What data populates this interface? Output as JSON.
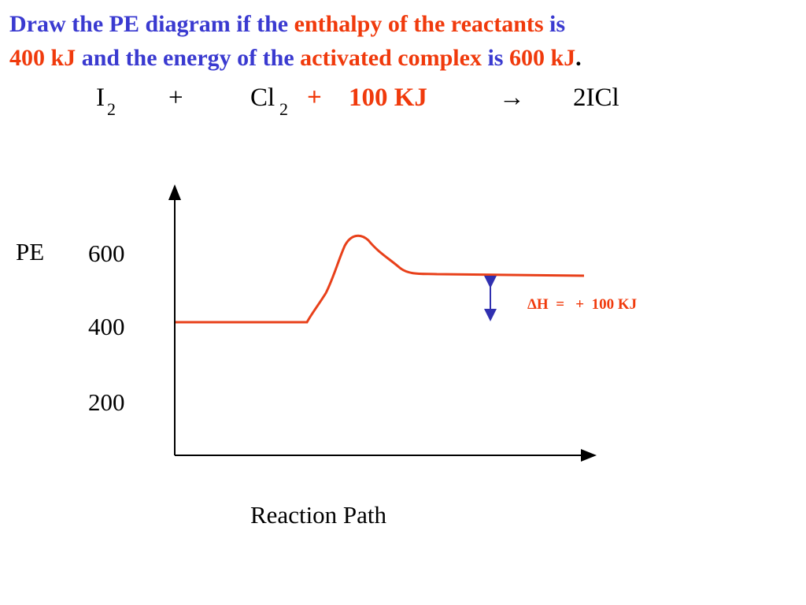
{
  "question": {
    "lines": [
      [
        {
          "text": "Draw the PE diagram if the ",
          "color": "#3a3ad0"
        },
        {
          "text": "enthalpy of the reactants",
          "color": "#f03a0c"
        },
        {
          "text": " is",
          "color": "#3a3ad0"
        }
      ],
      [
        {
          "text": "400 kJ",
          "color": "#f03a0c"
        },
        {
          "text": " and the energy of the ",
          "color": "#3a3ad0"
        },
        {
          "text": "activated complex",
          "color": "#f03a0c"
        },
        {
          "text": " is ",
          "color": "#3a3ad0"
        },
        {
          "text": "600 kJ",
          "color": "#f03a0c"
        },
        {
          "text": ".",
          "color": "#000000"
        }
      ]
    ]
  },
  "equation": {
    "reactant1": "I",
    "reactant1_sub": "2",
    "plus1": "+",
    "reactant2": "Cl",
    "reactant2_sub": "2",
    "plus2": "+",
    "energy": "100 KJ",
    "arrow": "→",
    "product": "2ICl"
  },
  "diagram": {
    "y_label": "PE",
    "y_ticks": [
      "600",
      "400",
      "200"
    ],
    "x_label": "Reaction Path",
    "delta_h_label": "ΔH  =   +  100 KJ"
  }
}
